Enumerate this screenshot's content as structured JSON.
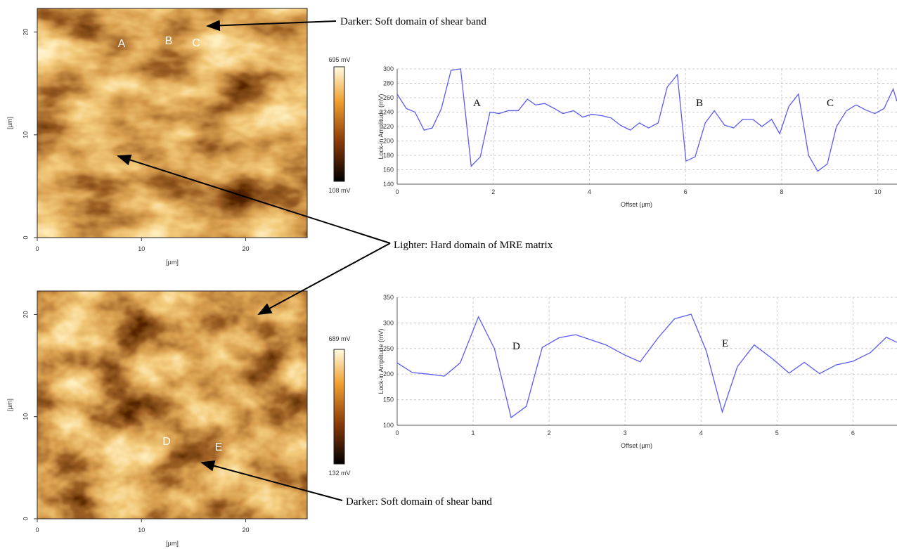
{
  "chart_data": [
    {
      "type": "line",
      "x_label": "Offset (µm)",
      "y_label": "Lock-in Amplitude (mV)",
      "x": [
        0,
        0.19,
        0.37,
        0.56,
        0.73,
        0.92,
        1.12,
        1.32,
        1.54,
        1.73,
        1.93,
        2.12,
        2.31,
        2.52,
        2.71,
        2.88,
        3.07,
        3.27,
        3.45,
        3.67,
        3.86,
        4.05,
        4.26,
        4.45,
        4.64,
        4.85,
        5.04,
        5.23,
        5.43,
        5.62,
        5.83,
        6.01,
        6.2,
        6.41,
        6.6,
        6.81,
        7.0,
        7.19,
        7.4,
        7.59,
        7.79,
        7.96,
        8.15,
        8.35,
        8.56,
        8.75,
        8.95,
        9.14,
        9.35,
        9.55,
        9.75,
        9.94,
        10.13,
        10.32,
        10.4
      ],
      "series": [
        {
          "color": "#5b5bf0",
          "values": [
            265,
            245,
            240,
            215,
            218,
            245,
            298,
            300,
            165,
            178,
            240,
            238,
            242,
            242,
            258,
            250,
            252,
            245,
            238,
            242,
            233,
            237,
            235,
            232,
            222,
            215,
            225,
            218,
            225,
            275,
            292,
            172,
            178,
            225,
            242,
            222,
            218,
            230,
            230,
            220,
            230,
            210,
            248,
            265,
            180,
            158,
            168,
            220,
            242,
            250,
            243,
            238,
            245,
            272,
            255
          ]
        }
      ],
      "xlim": [
        0,
        10.4
      ],
      "xticks": [
        0,
        2,
        4,
        6,
        8,
        10
      ],
      "ylim": [
        140,
        300
      ],
      "yticks": [
        140,
        160,
        180,
        200,
        220,
        240,
        260,
        280,
        300
      ],
      "grid": true,
      "annotations": [
        "A",
        "B",
        "C"
      ]
    },
    {
      "type": "line",
      "x_label": "Offset (µm)",
      "y_label": "Lock-in Amplitude (mV)",
      "x": [
        0,
        0.2,
        0.41,
        0.62,
        0.83,
        1.07,
        1.28,
        1.5,
        1.7,
        1.91,
        2.13,
        2.35,
        2.75,
        3.0,
        3.2,
        3.43,
        3.65,
        3.87,
        4.07,
        4.28,
        4.48,
        4.7,
        4.94,
        5.16,
        5.36,
        5.56,
        5.78,
        6.0,
        6.23,
        6.44,
        6.58
      ],
      "series": [
        {
          "color": "#5b5bf0",
          "values": [
            222,
            203,
            200,
            196,
            222,
            312,
            250,
            115,
            137,
            252,
            271,
            277,
            257,
            237,
            224,
            270,
            308,
            317,
            245,
            126,
            215,
            257,
            230,
            202,
            223,
            201,
            218,
            225,
            242,
            272,
            262
          ]
        }
      ],
      "xlim": [
        0,
        6.58
      ],
      "xticks": [
        0,
        1,
        2,
        3,
        4,
        5,
        6
      ],
      "ylim": [
        100,
        350
      ],
      "yticks": [
        100,
        150,
        200,
        250,
        300,
        350
      ],
      "grid": true,
      "annotations": [
        "D",
        "E"
      ]
    }
  ],
  "afm_images": [
    {
      "x_label": "[µm]",
      "y_label": "[µm]",
      "xlim": [
        0,
        25.9
      ],
      "ylim": [
        0,
        22.3
      ],
      "xticks": [
        0,
        10,
        20
      ],
      "yticks": [
        0,
        10,
        20
      ],
      "colorbar_max": "695 mV",
      "colorbar_min": "108 mV",
      "labels": [
        "A",
        "B",
        "C"
      ]
    },
    {
      "x_label": "[µm]",
      "y_label": "[µm]",
      "xlim": [
        0,
        25.9
      ],
      "ylim": [
        0,
        22.3
      ],
      "xticks": [
        0,
        10,
        20
      ],
      "yticks": [
        0,
        10,
        20
      ],
      "colorbar_max": "689 mV",
      "colorbar_min": "132 mV",
      "labels": [
        "D",
        "E"
      ]
    }
  ],
  "callouts": [
    "Darker: Soft domain of shear band",
    "Lighter: Hard domain of MRE matrix",
    "Darker: Soft domain of shear band"
  ]
}
